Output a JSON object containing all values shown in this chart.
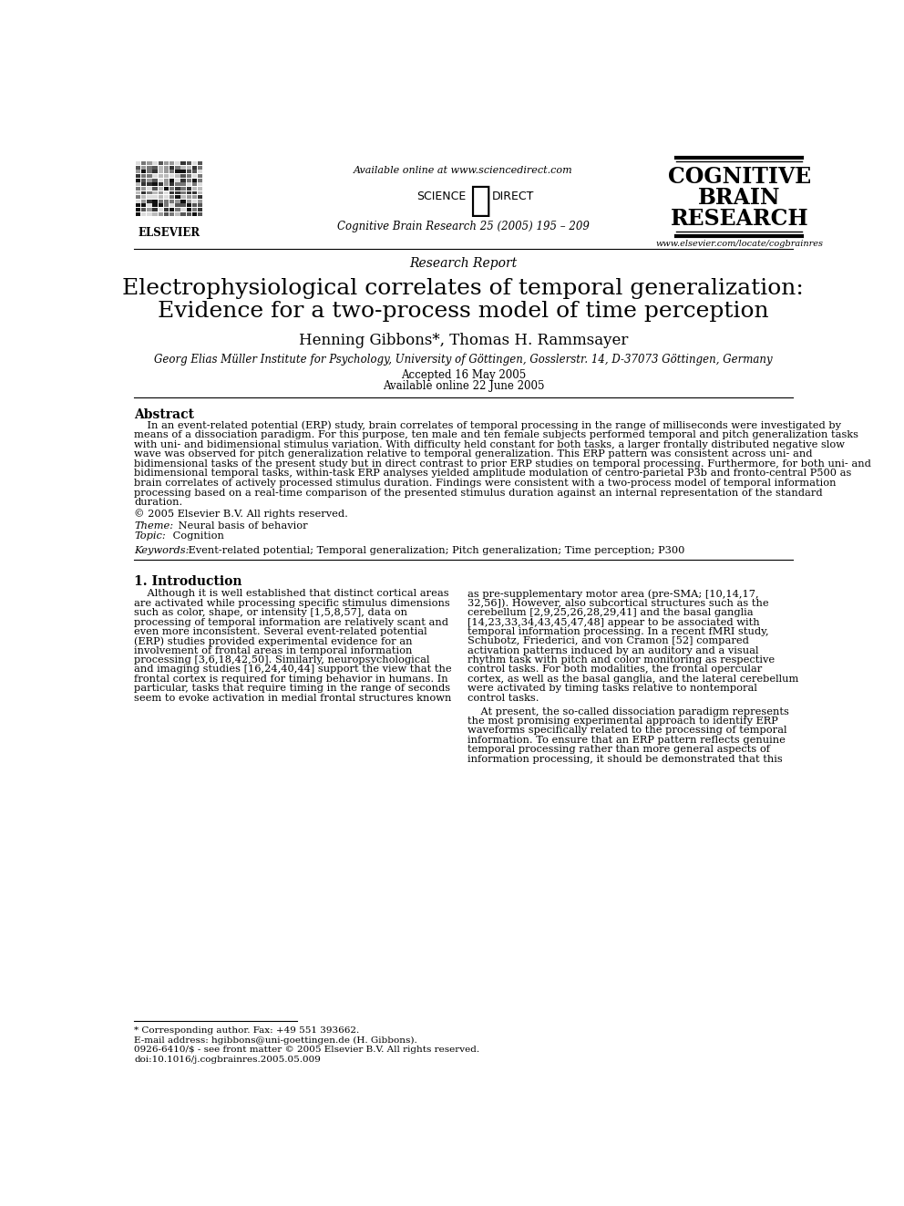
{
  "bg_color": "#ffffff",
  "available_online": "Available online at www.sciencedirect.com",
  "journal_info": "Cognitive Brain Research 25 (2005) 195 – 209",
  "journal_name_line1": "COGNITIVE",
  "journal_name_line2": "BRAIN",
  "journal_name_line3": "RESEARCH",
  "journal_url": "www.elsevier.com/locate/cogbrainres",
  "section_label": "Research Report",
  "title_line1": "Electrophysiological correlates of temporal generalization:",
  "title_line2": "Evidence for a two-process model of time perception",
  "authors": "Henning Gibbons*, Thomas H. Rammsayer",
  "affiliation": "Georg Elias Müller Institute for Psychology, University of Göttingen, Gosslerstr. 14, D-37073 Göttingen, Germany",
  "accepted": "Accepted 16 May 2005",
  "available": "Available online 22 June 2005",
  "abstract_title": "Abstract",
  "abstract_text": "    In an event-related potential (ERP) study, brain correlates of temporal processing in the range of milliseconds were investigated by\nmeans of a dissociation paradigm. For this purpose, ten male and ten female subjects performed temporal and pitch generalization tasks\nwith uni- and bidimensional stimulus variation. With difficulty held constant for both tasks, a larger frontally distributed negative slow\nwave was observed for pitch generalization relative to temporal generalization. This ERP pattern was consistent across uni- and\nbidimensional tasks of the present study but in direct contrast to prior ERP studies on temporal processing. Furthermore, for both uni- and\nbidimensional temporal tasks, within-task ERP analyses yielded amplitude modulation of centro-parietal P3b and fronto-central P500 as\nbrain correlates of actively processed stimulus duration. Findings were consistent with a two-process model of temporal information\nprocessing based on a real-time comparison of the presented stimulus duration against an internal representation of the standard\nduration.",
  "copyright": "© 2005 Elsevier B.V. All rights reserved.",
  "theme_label": "Theme:",
  "theme_value": " Neural basis of behavior",
  "topic_label": "Topic:",
  "topic_value": " Cognition",
  "keywords_label": "Keywords:",
  "keywords_value": " Event-related potential; Temporal generalization; Pitch generalization; Time perception; P300",
  "intro_title": "1. Introduction",
  "intro_col1_lines": [
    "    Although it is well established that distinct cortical areas",
    "are activated while processing specific stimulus dimensions",
    "such as color, shape, or intensity [1,5,8,57], data on",
    "processing of temporal information are relatively scant and",
    "even more inconsistent. Several event-related potential",
    "(ERP) studies provided experimental evidence for an",
    "involvement of frontal areas in temporal information",
    "processing [3,6,18,42,50]. Similarly, neuropsychological",
    "and imaging studies [16,24,40,44] support the view that the",
    "frontal cortex is required for timing behavior in humans. In",
    "particular, tasks that require timing in the range of seconds",
    "seem to evoke activation in medial frontal structures known"
  ],
  "intro_col2_lines_p1": [
    "as pre-supplementary motor area (pre-SMA; [10,14,17,",
    "32,56]). However, also subcortical structures such as the",
    "cerebellum [2,9,25,26,28,29,41] and the basal ganglia",
    "[14,23,33,34,43,45,47,48] appear to be associated with",
    "temporal information processing. In a recent fMRI study,",
    "Schubotz, Friederici, and von Cramon [52] compared",
    "activation patterns induced by an auditory and a visual",
    "rhythm task with pitch and color monitoring as respective",
    "control tasks. For both modalities, the frontal opercular",
    "cortex, as well as the basal ganglia, and the lateral cerebellum",
    "were activated by timing tasks relative to nontemporal",
    "control tasks."
  ],
  "intro_col2_lines_p2": [
    "    At present, the so-called dissociation paradigm represents",
    "the most promising experimental approach to identify ERP",
    "waveforms specifically related to the processing of temporal",
    "information. To ensure that an ERP pattern reflects genuine",
    "temporal processing rather than more general aspects of",
    "information processing, it should be demonstrated that this"
  ],
  "footnote1": "* Corresponding author. Fax: +49 551 393662.",
  "footnote2": "E-mail address: hgibbons@uni-goettingen.de (H. Gibbons).",
  "footnote3": "0926-6410/$ - see front matter © 2005 Elsevier B.V. All rights reserved.",
  "footnote4": "doi:10.1016/j.cogbrainres.2005.05.009"
}
